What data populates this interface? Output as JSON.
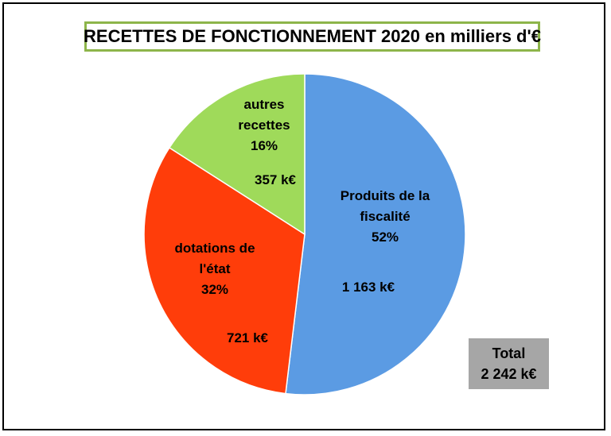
{
  "chart_data": {
    "type": "pie",
    "title": "RECETTES DE FONCTIONNEMENT 2020 en milliers d'€",
    "slices": [
      {
        "label_lines": [
          "Produits de la",
          "fiscalité"
        ],
        "percent_label": "52%",
        "value": 1163,
        "value_label": "1 163 k€",
        "color": "#5b9be3"
      },
      {
        "label_lines": [
          "dotations de",
          "l'état"
        ],
        "percent_label": "32%",
        "value": 721,
        "value_label": "721 k€",
        "color": "#ff3d0a"
      },
      {
        "label_lines": [
          "autres",
          "recettes"
        ],
        "percent_label": "16%",
        "value": 357,
        "value_label": "357 k€",
        "color": "#9fda5a"
      }
    ],
    "total": {
      "label": "Total",
      "value_label": "2 242 k€"
    }
  }
}
